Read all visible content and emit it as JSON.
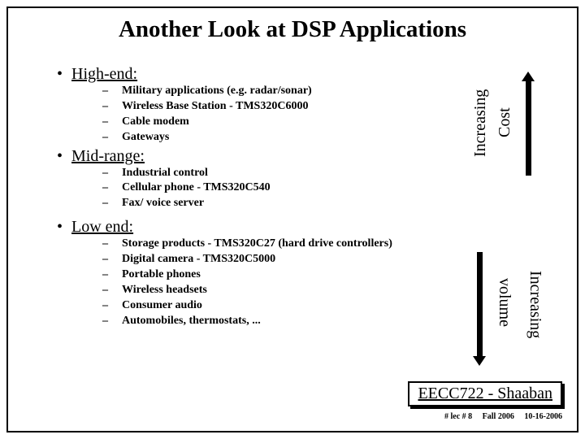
{
  "title": "Another Look at DSP Applications",
  "sections": [
    {
      "heading": "High-end:",
      "items": [
        "Military applications (e.g. radar/sonar)",
        "Wireless Base Station - TMS320C6000",
        "Cable modem",
        "Gateways"
      ]
    },
    {
      "heading": "Mid-range:",
      "items": [
        "Industrial control",
        "Cellular phone - TMS320C540",
        "Fax/ voice server"
      ]
    },
    {
      "heading": "Low end:",
      "items": [
        "Storage products - TMS320C27 (hard drive controllers)",
        "Digital camera - TMS320C5000",
        "Portable phones",
        "Wireless headsets",
        "Consumer audio",
        "Automobiles, thermostats, ..."
      ]
    }
  ],
  "arrows": {
    "top": {
      "label1": "Increasing",
      "label2": "Cost",
      "direction": "up",
      "shaft_color": "#000000"
    },
    "bottom": {
      "label1": "Increasing",
      "label2": "volume",
      "direction": "down",
      "shaft_color": "#000000"
    }
  },
  "footer": {
    "course": "EECC722 - Shaaban",
    "lec": "#  lec # 8",
    "term": "Fall 2006",
    "date": "10-16-2006"
  },
  "style": {
    "page_bg": "#ffffff",
    "border_color": "#000000",
    "title_fontsize": 29,
    "bullet_fontsize": 20,
    "sub_fontsize": 14,
    "footer_fontsize": 20,
    "footer_small_fontsize": 10
  }
}
